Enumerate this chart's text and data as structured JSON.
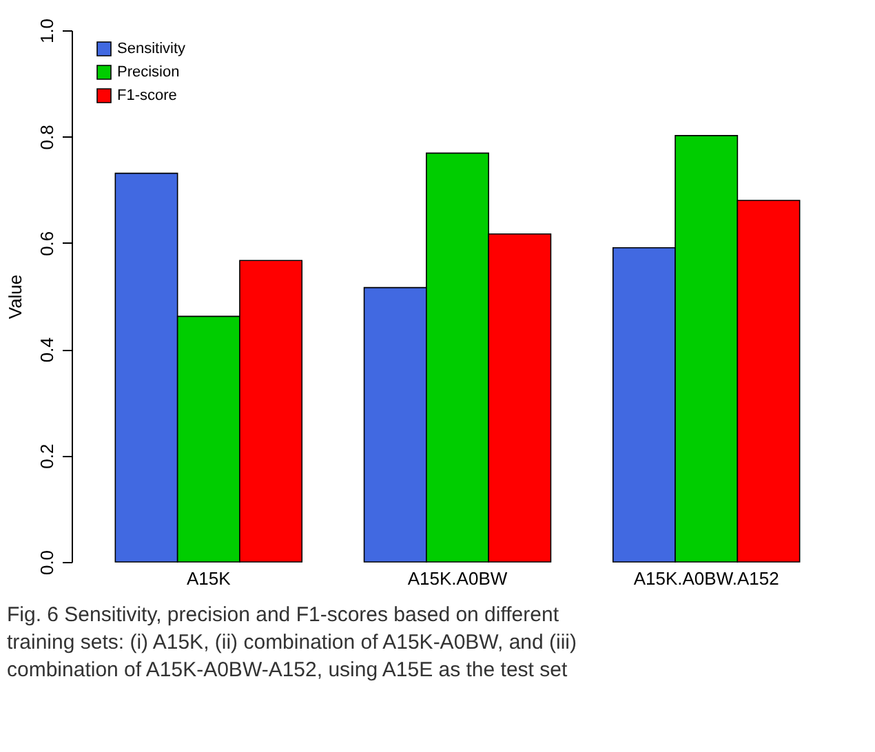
{
  "chart_data": {
    "type": "bar",
    "ylabel": "Value",
    "categories": [
      "A15K",
      "A15K.A0BW",
      "A15K.A0BW.A152"
    ],
    "series": [
      {
        "name": "Sensitivity",
        "color": "#4169e1",
        "values": [
          0.731,
          0.516,
          0.591
        ]
      },
      {
        "name": "Precision",
        "color": "#00cd00",
        "values": [
          0.462,
          0.769,
          0.802
        ]
      },
      {
        "name": "F1-score",
        "color": "#ff0000",
        "values": [
          0.567,
          0.617,
          0.68
        ]
      }
    ],
    "ylim": [
      0,
      1
    ],
    "yticks": [
      {
        "value": 0,
        "label": "0.0"
      },
      {
        "value": 0.2,
        "label": "0.2"
      },
      {
        "value": 0.4,
        "label": "0.4"
      },
      {
        "value": 0.6,
        "label": "0.6"
      },
      {
        "value": 0.8,
        "label": "0.8"
      },
      {
        "value": 1,
        "label": "1.0"
      }
    ],
    "grid": false,
    "legend": "top left",
    "annotations": [
      "Fig. 6 Sensitivity, precision and F1-scores based on different training sets: (i) A15K, (ii) combination of A15K-A0BW, and (iii) combination of A15K-A0BW-A152, using A15E as the test set"
    ]
  }
}
